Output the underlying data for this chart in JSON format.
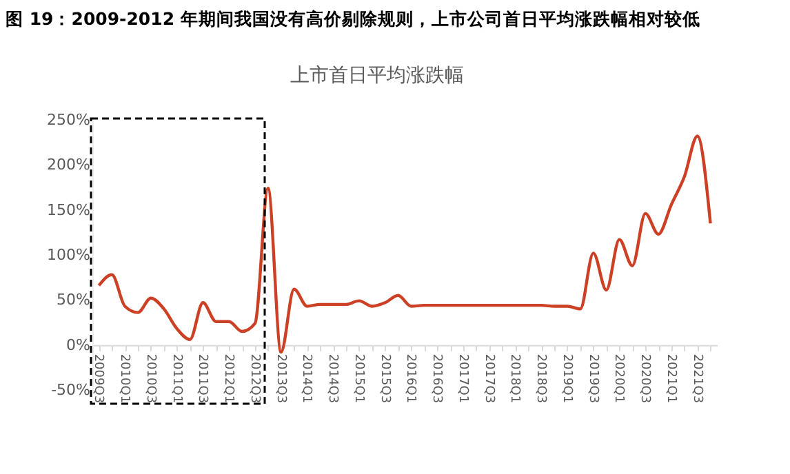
{
  "chart_data": {
    "type": "line",
    "title": "图 19：2009-2012 年期间我国没有高价剔除规则，上市公司首日平均涨跌幅相对较低",
    "subtitle": "上市首日平均涨跌幅",
    "categories": [
      "2009Q3",
      null,
      "2010Q1",
      null,
      "2010Q3",
      null,
      "2011Q1",
      null,
      "2011Q3",
      null,
      "2012Q1",
      null,
      "2012Q3",
      null,
      "2013Q3",
      null,
      "2014Q1",
      null,
      "2014Q3",
      null,
      "2015Q1",
      null,
      "2015Q3",
      null,
      "2016Q1",
      null,
      "2016Q3",
      null,
      "2017Q1",
      null,
      "2017Q3",
      null,
      "2018Q1",
      null,
      "2018Q3",
      null,
      "2019Q1",
      null,
      "2019Q3",
      null,
      "2020Q1",
      null,
      "2020Q3",
      null,
      "2021Q1",
      null,
      "2021Q3",
      null
    ],
    "series": [
      {
        "color": "#cc4125",
        "values": [
          66,
          78,
          43,
          36,
          52,
          40,
          18,
          6,
          47,
          26,
          26,
          15,
          24,
          174,
          -8,
          62,
          43,
          45,
          45,
          45,
          49,
          43,
          47,
          55,
          43,
          44,
          44,
          44,
          44,
          44,
          44,
          44,
          44,
          44,
          44,
          43,
          43,
          40,
          102,
          61,
          117,
          88,
          146,
          123,
          156,
          187,
          232,
          135
        ]
      }
    ],
    "ylim": [
      -50,
      250
    ],
    "yticks": [
      {
        "value": -50,
        "label": "-50%"
      },
      {
        "value": 0,
        "label": "0%"
      },
      {
        "value": 50,
        "label": "50%"
      },
      {
        "value": 100,
        "label": "100%"
      },
      {
        "value": 150,
        "label": "150%"
      },
      {
        "value": 200,
        "label": "200%"
      },
      {
        "value": 250,
        "label": "250%"
      }
    ],
    "grid": false,
    "marker": "none",
    "line_style": "solid"
  }
}
